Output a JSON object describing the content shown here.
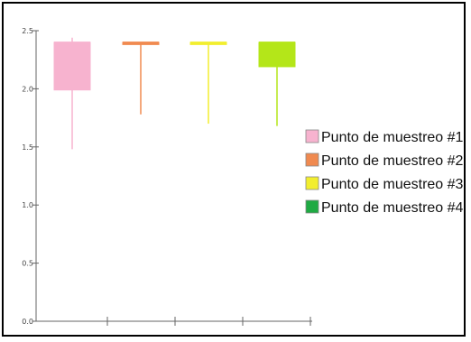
{
  "chart_data": {
    "type": "box",
    "title": "",
    "xlabel": "",
    "ylabel": "",
    "ylim": [
      0,
      2.5
    ],
    "yticks": [
      "0.0",
      "0.5",
      "1.0",
      "1.5",
      "2.0",
      "2.5"
    ],
    "grid": false,
    "legend_position": "right",
    "series": [
      {
        "name": "Punto de muestreo #1",
        "color": "#f7b3cf",
        "whisker_low": 1.48,
        "q1": 1.99,
        "median": 2.4,
        "q3": 2.4,
        "whisker_high": 2.44
      },
      {
        "name": "Punto de muestreo #2",
        "color": "#f08a50",
        "whisker_low": 1.78,
        "q1": 2.4,
        "median": 2.4,
        "q3": 2.4,
        "whisker_high": 2.4
      },
      {
        "name": "Punto de muestreo #3",
        "color": "#f2ee2e",
        "whisker_low": 1.7,
        "q1": 2.4,
        "median": 2.4,
        "q3": 2.4,
        "whisker_high": 2.4
      },
      {
        "name": "Punto de muestreo #4",
        "color": "#b4e619",
        "legend_color": "#1faa43",
        "whisker_low": 1.68,
        "q1": 2.19,
        "median": 2.4,
        "q3": 2.4,
        "whisker_high": 2.4
      }
    ]
  }
}
